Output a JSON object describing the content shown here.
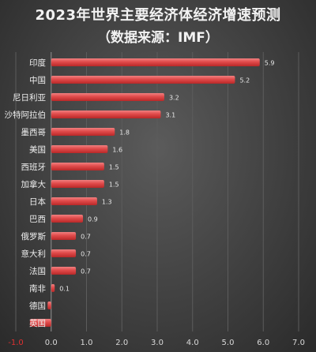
{
  "chart_data": {
    "type": "bar",
    "orientation": "horizontal",
    "title": "2023年世界主要经济体经济增速预测",
    "subtitle": "（数据来源：IMF）",
    "categories": [
      "印度",
      "中国",
      "尼日利亚",
      "沙特阿拉伯",
      "墨西哥",
      "美国",
      "西班牙",
      "加拿大",
      "日本",
      "巴西",
      "俄罗斯",
      "意大利",
      "法国",
      "南非",
      "德国",
      "英国"
    ],
    "values": [
      5.9,
      5.2,
      3.2,
      3.1,
      1.8,
      1.6,
      1.5,
      1.5,
      1.3,
      0.9,
      0.7,
      0.7,
      0.7,
      0.1,
      -0.1,
      -0.6
    ],
    "data_labels": [
      "5.9",
      "5.2",
      "3.2",
      "3.1",
      "1.8",
      "1.6",
      "1.5",
      "1.5",
      "1.3",
      "0.9",
      "0.7",
      "0.7",
      "0.7",
      "0.1",
      "",
      ""
    ],
    "xlim": [
      -1.0,
      7.0
    ],
    "x_ticks": [
      "-1.0",
      "0.0",
      "1.0",
      "2.0",
      "3.0",
      "4.0",
      "5.0",
      "6.0",
      "7.0"
    ],
    "grid": true,
    "bar_color": "#e04a4a",
    "neg_tick_color": "#e03030"
  }
}
